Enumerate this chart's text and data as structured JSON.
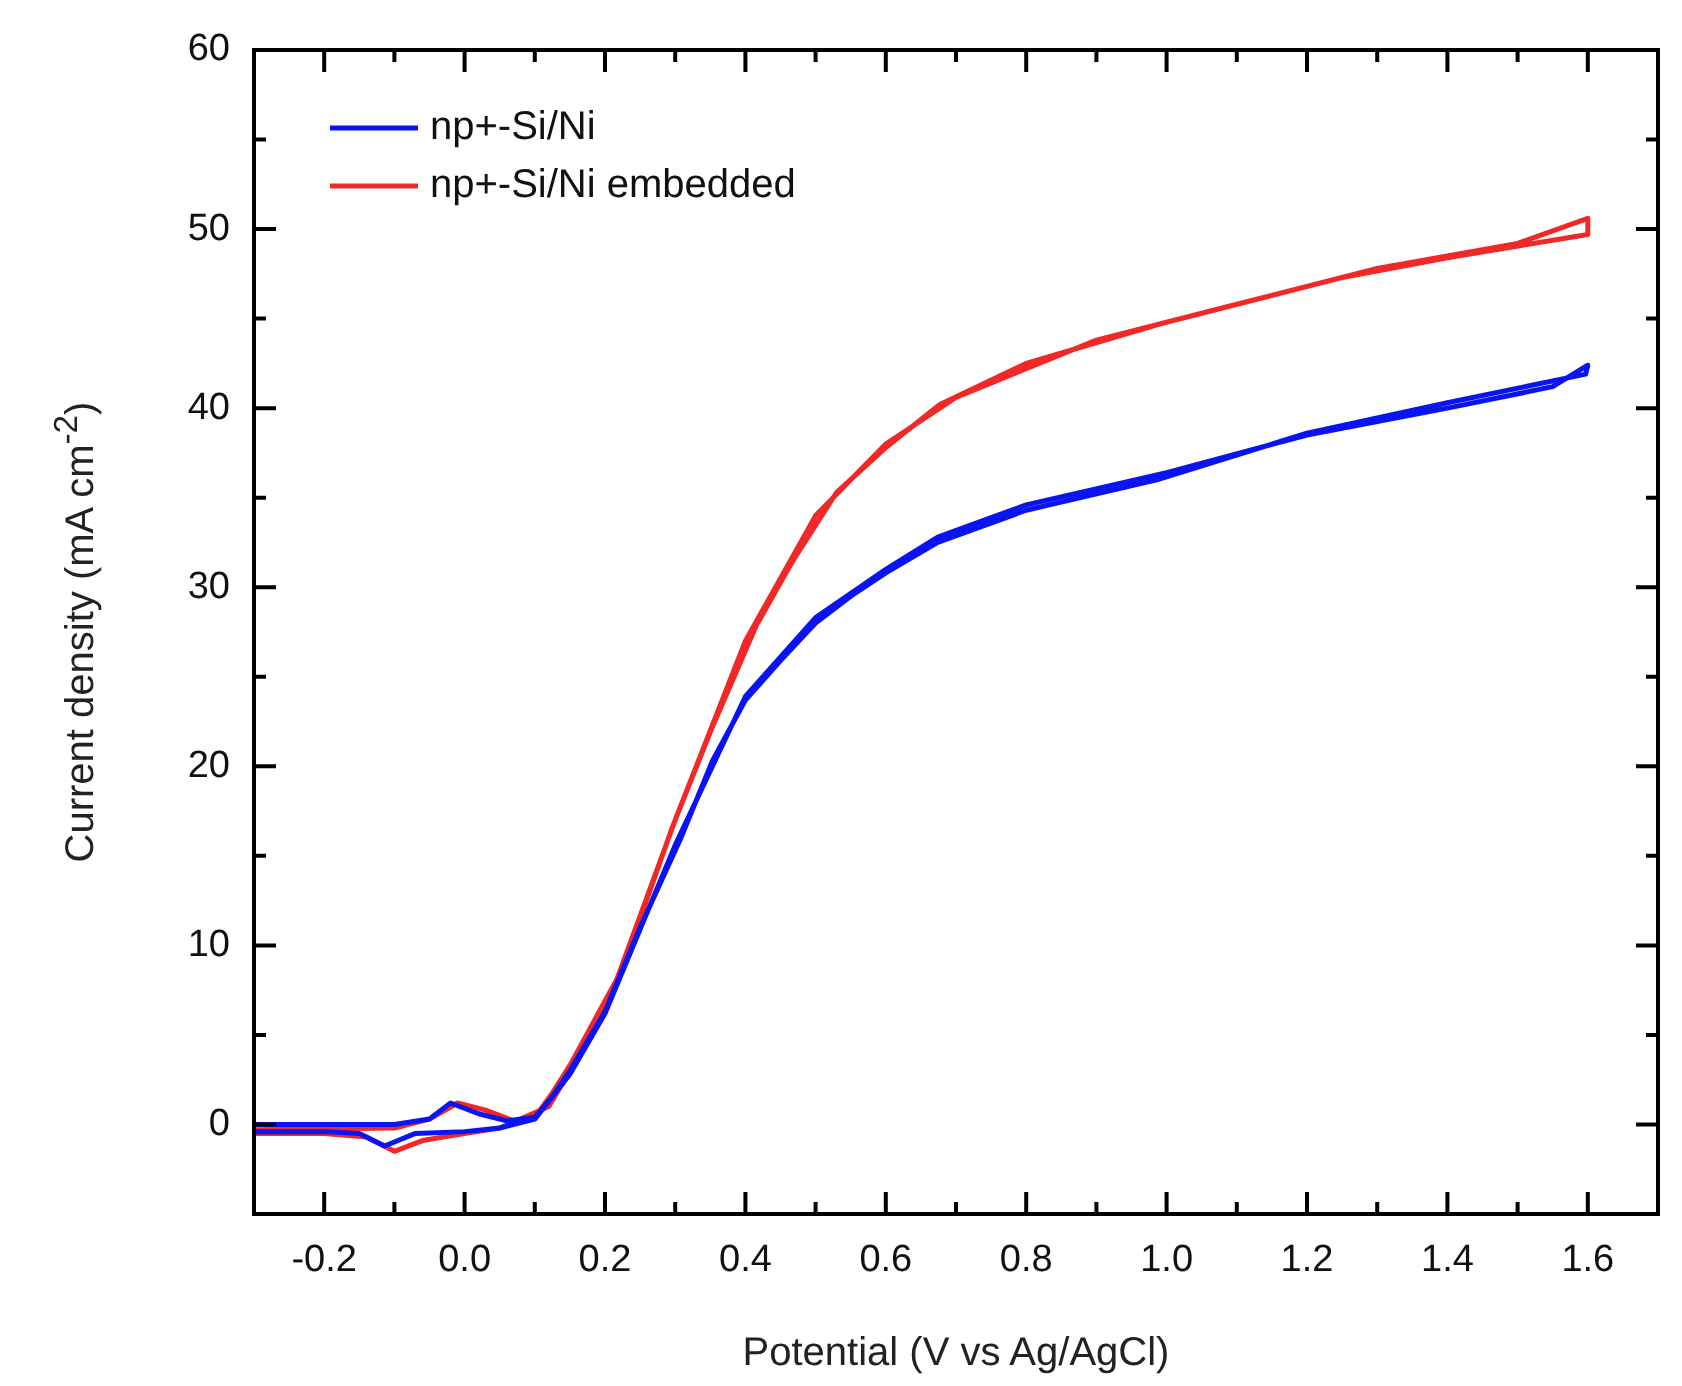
{
  "chart_data": {
    "type": "line",
    "xlabel": "Potential (V vs Ag/AgCl)",
    "ylabel": "Current density (mA cm$^{-2}$)",
    "xlim": [
      -0.3,
      1.7
    ],
    "ylim": [
      -5,
      60
    ],
    "xticks": [
      {
        "value": -0.3,
        "label": null
      },
      -0.2,
      {
        "value": -0.1,
        "label": null
      },
      {
        "value": 0,
        "label": "0.0"
      },
      {
        "value": 0.1,
        "label": null
      },
      0.2,
      {
        "value": 0.3,
        "label": null
      },
      0.4,
      {
        "value": 0.5,
        "label": null
      },
      0.6,
      {
        "value": 0.7,
        "label": null
      },
      0.8,
      {
        "value": 0.9,
        "label": null
      },
      {
        "value": 1,
        "label": "1.0"
      },
      {
        "value": 1.1,
        "label": null
      },
      1.2,
      {
        "value": 1.3,
        "label": null
      },
      1.4,
      {
        "value": 1.5,
        "label": null
      },
      1.6,
      {
        "value": 1.7,
        "label": null
      }
    ],
    "yticks": [
      {
        "value": -5,
        "label": null
      },
      0,
      {
        "value": 5,
        "label": null
      },
      10,
      {
        "value": 15,
        "label": null
      },
      20,
      {
        "value": 25,
        "label": null
      },
      30,
      {
        "value": 35,
        "label": null
      },
      40,
      {
        "value": 45,
        "label": null
      },
      50,
      {
        "value": 55,
        "label": null
      },
      60
    ],
    "grid": false,
    "legend": "top left",
    "marker": "none",
    "line_style": "solid",
    "series": [
      {
        "name": "np+-Si/Ni",
        "color": "#0a14f0",
        "x": [
          -0.3,
          -0.1,
          -0.05,
          -0.02,
          0.02,
          0.06,
          0.1,
          0.124,
          0.15,
          0.2,
          0.25,
          0.307,
          0.353,
          0.4,
          0.45,
          0.5,
          0.55,
          0.6,
          0.674,
          0.8,
          0.986,
          1.2,
          1.4,
          1.597,
          1.6,
          1.55,
          1.4,
          1.2,
          1.0,
          0.8,
          0.674,
          0.6,
          0.5,
          0.4,
          0.3,
          0.2,
          0.15,
          0.1,
          0.05,
          0,
          -0.07,
          -0.114,
          -0.15,
          -0.2,
          -0.3
        ],
        "values": [
          0,
          0,
          0.3,
          1.2,
          0.6,
          0.2,
          0.4,
          1.5,
          3,
          6.3,
          11,
          15.9,
          20.3,
          23.7,
          25.9,
          28,
          29.5,
          30.8,
          32.5,
          34.3,
          36,
          38.6,
          40.3,
          41.9,
          42.4,
          41.2,
          40,
          38.5,
          36.4,
          34.6,
          32.8,
          31,
          28.3,
          23.9,
          15.6,
          6.2,
          2.8,
          0.3,
          -0.2,
          -0.4,
          -0.5,
          -1.2,
          -0.5,
          -0.4,
          -0.4
        ]
      },
      {
        "name": "np+-Si/Ni embedded",
        "color": "#f02828",
        "x": [
          -0.3,
          -0.1,
          -0.05,
          -0.01,
          0.03,
          0.07,
          0.1,
          0.124,
          0.15,
          0.221,
          0.25,
          0.296,
          0.353,
          0.416,
          0.468,
          0.53,
          0.6,
          0.677,
          0.8,
          0.99,
          1.25,
          1.4,
          1.6,
          1.6,
          1.5,
          1.3,
          1.1,
          0.9,
          0.7,
          0.6,
          0.5,
          0.4,
          0.3,
          0.2,
          0.12,
          0.05,
          0,
          -0.06,
          -0.1,
          -0.14,
          -0.2,
          -0.3
        ],
        "values": [
          -0.3,
          -0.2,
          0.3,
          1.2,
          0.8,
          0.2,
          0.4,
          1.7,
          3.3,
          8.4,
          11.5,
          16.6,
          22.2,
          27.9,
          31.5,
          35.3,
          37.8,
          40.2,
          42.5,
          44.7,
          47.3,
          48.4,
          49.7,
          50.6,
          49.2,
          47.8,
          45.8,
          43.8,
          40.6,
          38,
          34,
          27,
          17,
          6.3,
          1,
          -0.2,
          -0.5,
          -0.9,
          -1.5,
          -0.7,
          -0.5,
          -0.5
        ]
      }
    ]
  }
}
